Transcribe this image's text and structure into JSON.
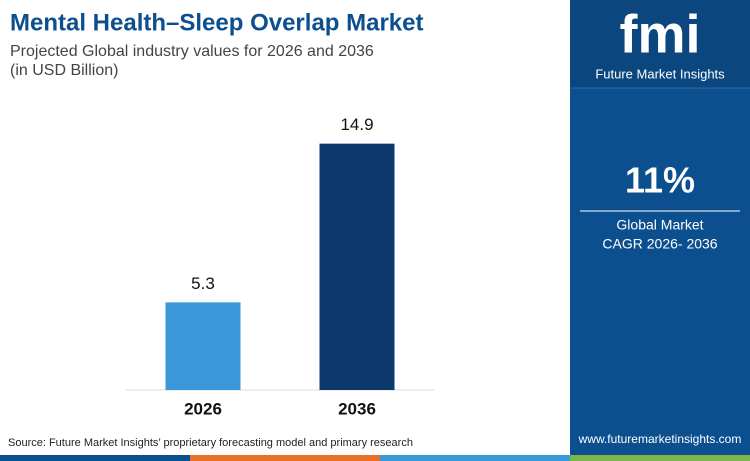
{
  "chart_data": {
    "type": "bar",
    "title": "Mental Health–Sleep Overlap Market",
    "subtitle": [
      "Projected Global industry values for 2026 and 2036",
      "(in USD Billion)"
    ],
    "categories": [
      "2026",
      "2036"
    ],
    "values": [
      5.3,
      14.9
    ],
    "colors": [
      "#3a98d8",
      "#0c3a6d"
    ],
    "ylim": [
      0,
      15
    ]
  },
  "source": "Source: Future Market Insights’ proprietary forecasting model and primary research",
  "sidebar": {
    "logo": "fmi",
    "brand": "Future Market Insights",
    "stat": "11%",
    "stat_label": [
      "Global Market",
      "CAGR 2026- 2036"
    ],
    "url": "www.futuremarketinsights.com"
  }
}
